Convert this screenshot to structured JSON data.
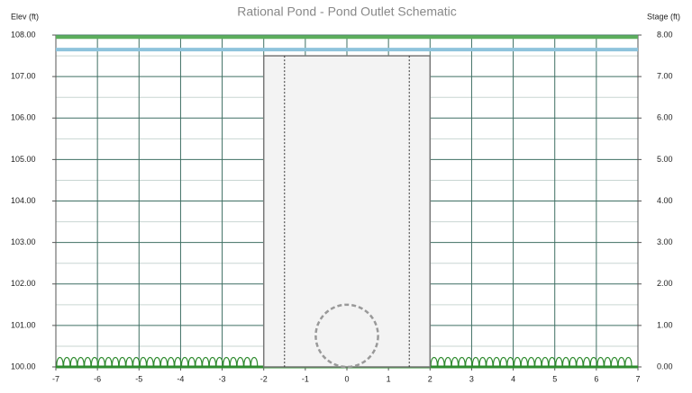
{
  "chart_data": {
    "type": "schematic",
    "title": "Rational Pond - Pond Outlet Schematic",
    "y_label": "Elev (ft)",
    "y2_label": "Stage (ft)",
    "xlim": [
      -7,
      7
    ],
    "xticks": [
      -7,
      -6,
      -5,
      -4,
      -3,
      -2,
      -1,
      0,
      1,
      2,
      3,
      4,
      5,
      6,
      7
    ],
    "ylim": [
      100,
      108
    ],
    "yticks": [
      {
        "value": 100,
        "label": "100.00"
      },
      {
        "value": 101,
        "label": "101.00"
      },
      {
        "value": 102,
        "label": "102.00"
      },
      {
        "value": 103,
        "label": "103.00"
      },
      {
        "value": 104,
        "label": "104.00"
      },
      {
        "value": 105,
        "label": "105.00"
      },
      {
        "value": 106,
        "label": "106.00"
      },
      {
        "value": 107,
        "label": "107.00"
      },
      {
        "value": 108,
        "label": "108.00"
      }
    ],
    "y2lim": [
      0,
      8
    ],
    "y2ticks": [
      {
        "value": 0,
        "label": "0.00"
      },
      {
        "value": 1,
        "label": "1.00"
      },
      {
        "value": 2,
        "label": "2.00"
      },
      {
        "value": 3,
        "label": "3.00"
      },
      {
        "value": 4,
        "label": "4.00"
      },
      {
        "value": 5,
        "label": "5.00"
      },
      {
        "value": 6,
        "label": "6.00"
      },
      {
        "value": 7,
        "label": "7.00"
      },
      {
        "value": 8,
        "label": "8.00"
      }
    ],
    "grid": true,
    "minor_grid": true,
    "grid_color": "#3f6f63",
    "water_levels": [
      {
        "value": 107.95,
        "color": "#5cae5c"
      },
      {
        "value": 107.65,
        "color": "#8ec3dc"
      }
    ],
    "riser": {
      "x": [
        -2,
        2
      ],
      "top": 107.5,
      "inner_x": [
        -1.5,
        1.5
      ]
    },
    "orifice": {
      "x": 0,
      "y": 100.75,
      "diameter": 1.5
    },
    "ground": {
      "value": 100,
      "color": "#2e8b2e"
    }
  }
}
